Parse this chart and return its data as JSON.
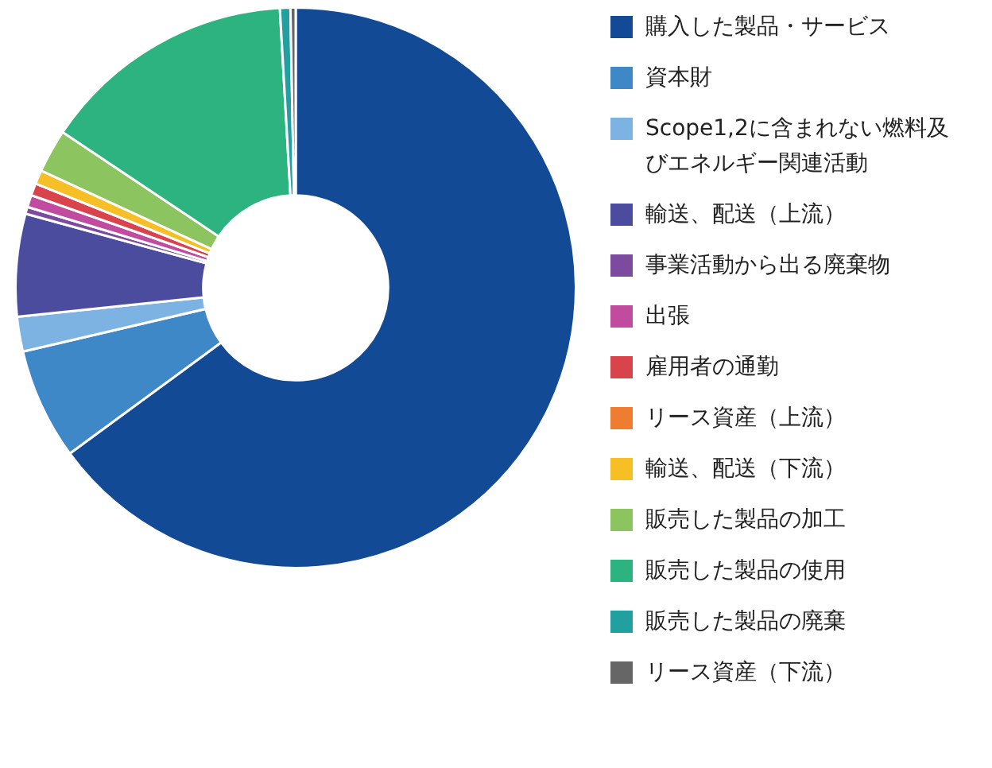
{
  "chart_data": {
    "type": "donut",
    "categories": [
      "購入した製品・サービス",
      "資本財",
      "Scope1,2に含まれない燃料及びエネルギー関連活動",
      "輸送、配送（上流）",
      "事業活動から出る廃棄物",
      "出張",
      "雇用者の通勤",
      "リース資産（上流）",
      "輸送、配送（下流）",
      "販売した製品の加工",
      "販売した製品の使用",
      "販売した製品の廃棄",
      "リース資産（下流）"
    ],
    "values": [
      64.8,
      6.4,
      2.0,
      5.9,
      0.4,
      0.7,
      0.7,
      null,
      0.8,
      2.5,
      14.7,
      0.6,
      0.3
    ],
    "colors": [
      "#134a96",
      "#3f88c8",
      "#7db3e2",
      "#4c4c9e",
      "#7c4a9f",
      "#c04b9f",
      "#d9434c",
      "#ef7d31",
      "#f7bf26",
      "#8cc460",
      "#2db37f",
      "#22a0a0",
      "#666666"
    ],
    "legend": "right"
  }
}
